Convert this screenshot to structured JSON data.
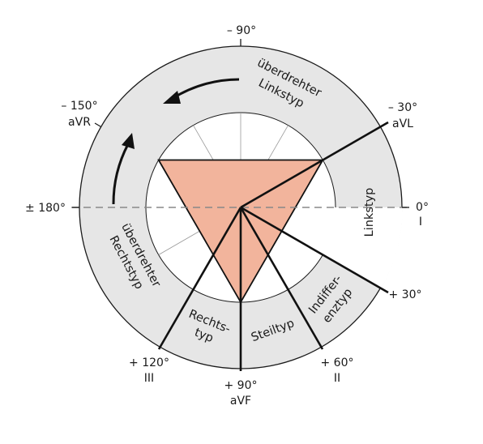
{
  "colors": {
    "ring": "#e6e6e6",
    "triangle": "#f2b49c",
    "line": "#111111",
    "dashed": "#888888",
    "thin_spoke": "#999999"
  },
  "angles": {
    "top": "– 90°",
    "avr_deg": "– 150°",
    "avr_lead": "aVR",
    "avl_deg": "– 30°",
    "avl_lead": "aVL",
    "left_deg": "± 180°",
    "right_deg": "0°",
    "right_lead": "I",
    "plus30": "+ 30°",
    "plus60_deg": "+ 60°",
    "plus60_lead": "II",
    "plus90_deg": "+ 90°",
    "plus90_lead": "aVF",
    "plus120_deg": "+ 120°",
    "plus120_lead": "III"
  },
  "zones": {
    "ueberdrehter_linkstyp_1": "überdrehter",
    "ueberdrehter_linkstyp_2": "Linkstyp",
    "ueberdrehter_rechtstyp_1": "überdrehter",
    "ueberdrehter_rechtstyp_2": "Rechtstyp",
    "linkstyp": "Linkstyp",
    "indifferenztyp_1": "Indiffer-",
    "indifferenztyp_2": "enztyp",
    "steiltyp": "Steiltyp",
    "rechtstyp_1": "Rechts-",
    "rechtstyp_2": "typ"
  }
}
